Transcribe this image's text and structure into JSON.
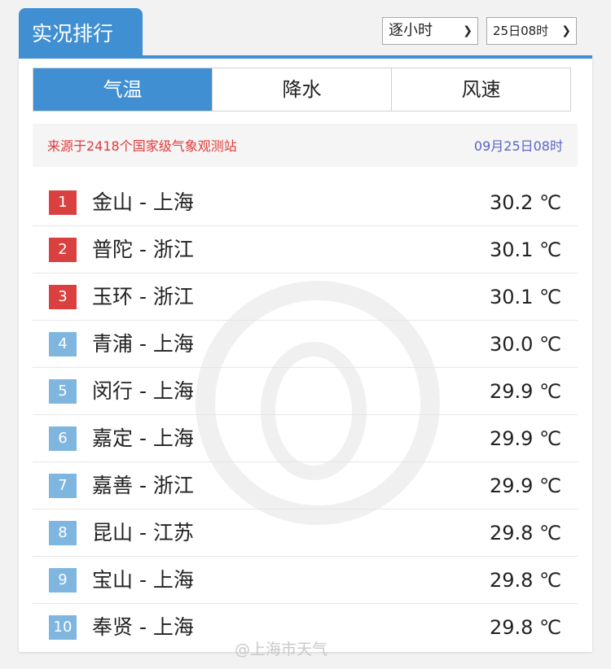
{
  "header": {
    "title": "实况排行",
    "interval_select": "逐小时",
    "time_select": "25日08时"
  },
  "tabs": [
    {
      "label": "气温",
      "active": true
    },
    {
      "label": "降水",
      "active": false
    },
    {
      "label": "风速",
      "active": false
    }
  ],
  "source": {
    "text": "来源于2418个国家级气象观测站",
    "time": "09月25日08时"
  },
  "colors": {
    "accent": "#3f8fd2",
    "top3_badge": "#d9403f",
    "other_badge": "#7fb6e0"
  },
  "rankings": [
    {
      "rank": "1",
      "station": "金山 - 上海",
      "value": "30.2 ℃"
    },
    {
      "rank": "2",
      "station": "普陀 - 浙江",
      "value": "30.1 ℃"
    },
    {
      "rank": "3",
      "station": "玉环 - 浙江",
      "value": "30.1 ℃"
    },
    {
      "rank": "4",
      "station": "青浦 - 上海",
      "value": "30.0 ℃"
    },
    {
      "rank": "5",
      "station": "闵行 - 上海",
      "value": "29.9 ℃"
    },
    {
      "rank": "6",
      "station": "嘉定 - 上海",
      "value": "29.9 ℃"
    },
    {
      "rank": "7",
      "station": "嘉善 - 浙江",
      "value": "29.9 ℃"
    },
    {
      "rank": "8",
      "station": "昆山 - 江苏",
      "value": "29.8 ℃"
    },
    {
      "rank": "9",
      "station": "宝山 - 上海",
      "value": "29.8 ℃"
    },
    {
      "rank": "10",
      "station": "奉贤 - 上海",
      "value": "29.8 ℃"
    }
  ],
  "watermark": "@上海市天气"
}
